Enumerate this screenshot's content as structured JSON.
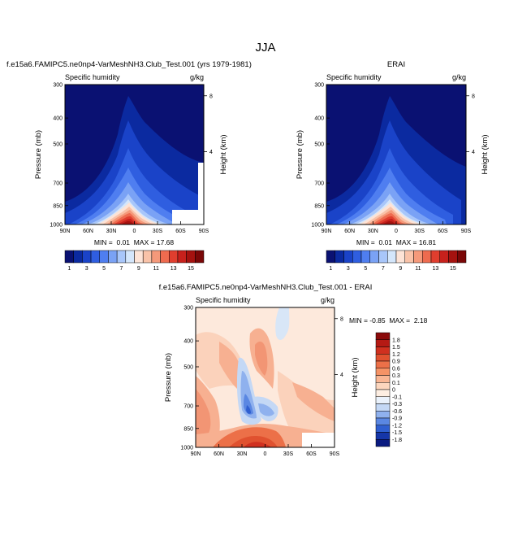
{
  "figure": {
    "title": "JJA"
  },
  "chart_data": [
    {
      "type": "heatmap",
      "id": "model",
      "title": "f.e15a6.FAMIPC5.ne0np4-VarMeshNH3.Club_Test.001 (yrs 1979-1981)",
      "subtitle_left": "Specific humidity",
      "units": "g/kg",
      "xlabel": "",
      "ylabel": "Pressure (mb)",
      "ylabel_right": "Height (km)",
      "x_ticks": [
        "90N",
        "60N",
        "30N",
        "0",
        "30S",
        "60S",
        "90S"
      ],
      "y_ticks": [
        "300",
        "400",
        "500",
        "700",
        "850",
        "1000"
      ],
      "right_ticks": [
        "8",
        "4"
      ],
      "ylim": [
        1000,
        300
      ],
      "stats": "MIN =  0.01  MAX = 17.68",
      "min": 0.01,
      "max": 17.68,
      "colorbar": {
        "labels": [
          "1",
          "3",
          "5",
          "7",
          "9",
          "11",
          "13",
          "15"
        ],
        "colors": [
          "#0a1172",
          "#0b2aa0",
          "#1a43c8",
          "#2f5ee0",
          "#4f7ef0",
          "#7aa2f5",
          "#a8c6fa",
          "#d4e6fb",
          "#fde3d6",
          "#f9c2a8",
          "#f5997a",
          "#ee6b4f",
          "#e03e2e",
          "#c7211c",
          "#a5120f",
          "#7a0707"
        ]
      }
    },
    {
      "type": "heatmap",
      "id": "obs",
      "title": "ERAI",
      "subtitle_left": "Specific humidity",
      "units": "g/kg",
      "ylabel": "Pressure (mb)",
      "ylabel_right": "Height (km)",
      "x_ticks": [
        "90N",
        "60N",
        "30N",
        "0",
        "30S",
        "60S",
        "90S"
      ],
      "y_ticks": [
        "300",
        "400",
        "500",
        "700",
        "850",
        "1000"
      ],
      "right_ticks": [
        "8",
        "4"
      ],
      "ylim": [
        1000,
        300
      ],
      "stats": "MIN =  0.01  MAX = 16.81",
      "min": 0.01,
      "max": 16.81
    },
    {
      "type": "heatmap",
      "id": "diff",
      "title": "f.e15a6.FAMIPC5.ne0np4-VarMeshNH3.Club_Test.001 - ERAI",
      "subtitle_left": "Specific humidity",
      "units": "g/kg",
      "ylabel": "Pressure (mb)",
      "ylabel_right": "Height (km)",
      "x_ticks": [
        "90N",
        "60N",
        "30N",
        "0",
        "30S",
        "60S",
        "90S"
      ],
      "y_ticks": [
        "300",
        "400",
        "500",
        "700",
        "850",
        "1000"
      ],
      "right_ticks": [
        "8",
        "4"
      ],
      "ylim": [
        1000,
        300
      ],
      "stats": "MIN = -0.85  MAX =  2.18",
      "min": -0.85,
      "max": 2.18,
      "colorbar": {
        "labels": [
          "1.8",
          "1.5",
          "1.2",
          "0.9",
          "0.6",
          "0.3",
          "0.1",
          "0",
          "-0.1",
          "-0.3",
          "-0.6",
          "-0.9",
          "-1.2",
          "-1.5",
          "-1.8"
        ],
        "colors": [
          "#8b0a0a",
          "#b51a14",
          "#d0301f",
          "#e0512f",
          "#ec7048",
          "#f59366",
          "#f9b694",
          "#fcd6be",
          "#fdeee2",
          "#eaf2fc",
          "#c4d8f5",
          "#8fb1ee",
          "#5a87e2",
          "#2f5fd0",
          "#1536a8",
          "#0a1a80"
        ]
      }
    }
  ]
}
